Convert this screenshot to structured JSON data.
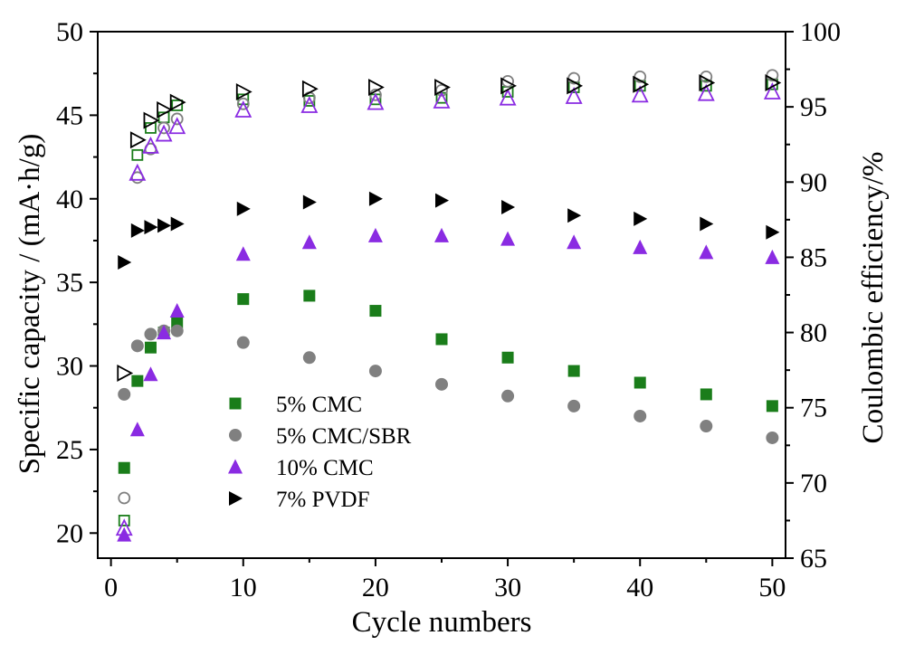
{
  "chart_data": {
    "type": "scatter",
    "x_axis": {
      "label": "Cycle numbers",
      "range": [
        -1,
        51
      ],
      "ticks": [
        0,
        10,
        20,
        30,
        40,
        50
      ]
    },
    "y_axis_left": {
      "label": "Specific capacity / (mA·h/g)",
      "range": [
        18.5,
        50
      ],
      "ticks": [
        20,
        25,
        30,
        35,
        40,
        45,
        50
      ]
    },
    "y_axis_right": {
      "label": "Coulombic efficiency/%",
      "range": [
        65,
        100
      ],
      "ticks": [
        65,
        70,
        75,
        80,
        85,
        90,
        95,
        100
      ]
    },
    "grid": false,
    "legend": {
      "placement": "bottom-center",
      "entries": [
        "5% CMC",
        "5% CMC/SBR",
        "10% CMC",
        "7% PVDF"
      ]
    },
    "series": [
      {
        "name": "5% CMC",
        "axis": "left",
        "marker": "square",
        "fill": "filled",
        "color": "#1a7d1a",
        "points": [
          [
            1,
            23.9
          ],
          [
            2,
            29.1
          ],
          [
            3,
            31.1
          ],
          [
            4,
            32.0
          ],
          [
            5,
            32.6
          ],
          [
            10,
            34.0
          ],
          [
            15,
            34.2
          ],
          [
            20,
            33.3
          ],
          [
            25,
            31.6
          ],
          [
            30,
            30.5
          ],
          [
            35,
            29.7
          ],
          [
            40,
            29.0
          ],
          [
            45,
            28.3
          ],
          [
            50,
            27.6
          ]
        ]
      },
      {
        "name": "5% CMC/SBR",
        "axis": "left",
        "marker": "circle",
        "fill": "filled",
        "color": "#808080",
        "points": [
          [
            1,
            28.3
          ],
          [
            2,
            31.2
          ],
          [
            3,
            31.9
          ],
          [
            4,
            32.1
          ],
          [
            5,
            32.1
          ],
          [
            10,
            31.4
          ],
          [
            15,
            30.5
          ],
          [
            20,
            29.7
          ],
          [
            25,
            28.9
          ],
          [
            30,
            28.2
          ],
          [
            35,
            27.6
          ],
          [
            40,
            27.0
          ],
          [
            45,
            26.4
          ],
          [
            50,
            25.7
          ]
        ]
      },
      {
        "name": "10% CMC",
        "axis": "left",
        "marker": "triangle-up",
        "fill": "filled",
        "color": "#8a2be2",
        "points": [
          [
            1,
            19.9
          ],
          [
            2,
            26.2
          ],
          [
            3,
            29.5
          ],
          [
            4,
            32.0
          ],
          [
            5,
            33.3
          ],
          [
            10,
            36.7
          ],
          [
            15,
            37.4
          ],
          [
            20,
            37.8
          ],
          [
            25,
            37.8
          ],
          [
            30,
            37.6
          ],
          [
            35,
            37.4
          ],
          [
            40,
            37.1
          ],
          [
            45,
            36.8
          ],
          [
            50,
            36.5
          ]
        ]
      },
      {
        "name": "7% PVDF",
        "axis": "left",
        "marker": "triangle-right",
        "fill": "filled",
        "color": "#000000",
        "points": [
          [
            1,
            36.2
          ],
          [
            2,
            38.1
          ],
          [
            3,
            38.3
          ],
          [
            4,
            38.4
          ],
          [
            5,
            38.5
          ],
          [
            10,
            39.4
          ],
          [
            15,
            39.8
          ],
          [
            20,
            40.0
          ],
          [
            25,
            39.9
          ],
          [
            30,
            39.5
          ],
          [
            35,
            39.0
          ],
          [
            40,
            38.8
          ],
          [
            45,
            38.5
          ],
          [
            50,
            38.0
          ]
        ]
      },
      {
        "name": "5% CMC",
        "axis": "right",
        "marker": "square",
        "fill": "open",
        "color": "#1a7d1a",
        "points": [
          [
            1,
            67.5
          ],
          [
            2,
            91.8
          ],
          [
            3,
            93.6
          ],
          [
            4,
            94.3
          ],
          [
            5,
            95.1
          ],
          [
            10,
            95.5
          ],
          [
            15,
            95.4
          ],
          [
            20,
            95.5
          ],
          [
            25,
            95.6
          ],
          [
            30,
            96.0
          ],
          [
            35,
            96.3
          ],
          [
            40,
            96.4
          ],
          [
            45,
            96.4
          ],
          [
            50,
            96.5
          ]
        ]
      },
      {
        "name": "5% CMC/SBR",
        "axis": "right",
        "marker": "circle",
        "fill": "open",
        "color": "#808080",
        "points": [
          [
            1,
            69.0
          ],
          [
            2,
            90.3
          ],
          [
            3,
            92.2
          ],
          [
            4,
            93.6
          ],
          [
            5,
            94.2
          ],
          [
            10,
            95.2
          ],
          [
            15,
            95.6
          ],
          [
            20,
            95.8
          ],
          [
            25,
            96.1
          ],
          [
            30,
            96.7
          ],
          [
            35,
            96.9
          ],
          [
            40,
            97.0
          ],
          [
            45,
            97.0
          ],
          [
            50,
            97.1
          ]
        ]
      },
      {
        "name": "10% CMC",
        "axis": "right",
        "marker": "triangle-up",
        "fill": "open",
        "color": "#8a2be2",
        "points": [
          [
            1,
            67.0
          ],
          [
            2,
            90.6
          ],
          [
            3,
            92.4
          ],
          [
            4,
            93.2
          ],
          [
            5,
            93.7
          ],
          [
            10,
            94.8
          ],
          [
            15,
            95.1
          ],
          [
            20,
            95.3
          ],
          [
            25,
            95.4
          ],
          [
            30,
            95.6
          ],
          [
            35,
            95.7
          ],
          [
            40,
            95.8
          ],
          [
            45,
            95.9
          ],
          [
            50,
            96.0
          ]
        ]
      },
      {
        "name": "7% PVDF",
        "axis": "right",
        "marker": "triangle-right",
        "fill": "open",
        "color": "#000000",
        "points": [
          [
            1,
            77.3
          ],
          [
            2,
            92.8
          ],
          [
            3,
            94.1
          ],
          [
            4,
            94.8
          ],
          [
            5,
            95.3
          ],
          [
            10,
            96.0
          ],
          [
            15,
            96.2
          ],
          [
            20,
            96.3
          ],
          [
            25,
            96.3
          ],
          [
            30,
            96.4
          ],
          [
            35,
            96.4
          ],
          [
            40,
            96.5
          ],
          [
            45,
            96.6
          ],
          [
            50,
            96.6
          ]
        ]
      }
    ]
  }
}
